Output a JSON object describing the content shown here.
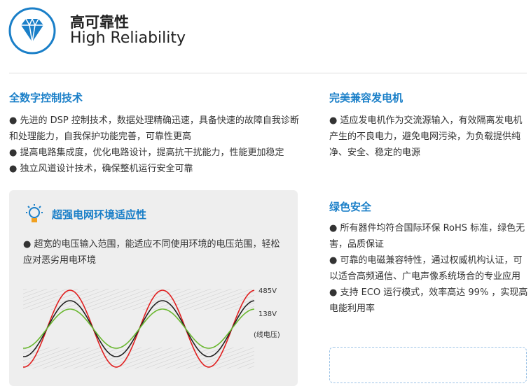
{
  "header": {
    "title": "高可靠性",
    "subtitle": "High Reliability"
  },
  "left": {
    "heading": "全数字控制技术",
    "items": [
      "● 先进的 DSP 控制技术，数据处理精确迅速，具备快速的故障自我诊断和处理能力，自我保护功能完善，可靠性更高",
      "● 提高电路集成度，优化电路设计，提高抗干扰能力，性能更加稳定",
      "● 独立风道设计技术，确保整机运行安全可靠"
    ]
  },
  "panel": {
    "heading": "超强电网环境适应性",
    "text": "● 超宽的电压输入范围，能适应不同使用环境的电压范围，轻松应对恶劣用电环境",
    "labels": [
      "485V",
      "138V",
      "(线电压)"
    ]
  },
  "right": [
    {
      "heading": "完美兼容发电机",
      "items": [
        "● 适应发电机作为交流源输入，有效隔离发电机产生的不良电力，避免电网污染，为负载提供纯净、安全、稳定的电源"
      ]
    },
    {
      "heading": "绿色安全",
      "items": [
        "● 所有器件均符合国际环保 RoHS 标准，绿色无害，品质保证",
        "● 可靠的电磁兼容特性，通过权威机构认证，可以适合高频通信、广电声像系统场合的专业应用",
        "● 支持 ECO 运行模式，效率高达 99% ，实现高电能利用率"
      ]
    }
  ]
}
